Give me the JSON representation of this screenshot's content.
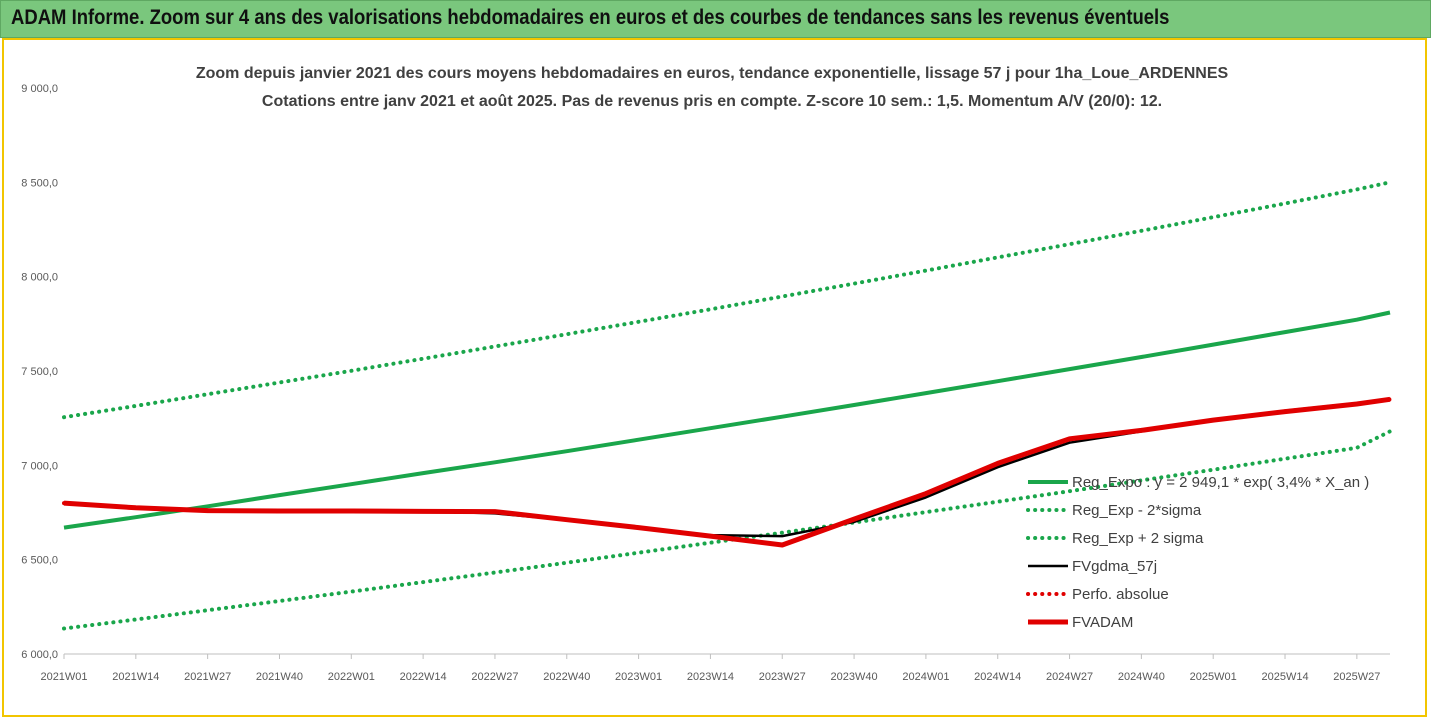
{
  "banner": {
    "title": "ADAM Informe. Zoom sur 4 ans des valorisations hebdomadaires en euros et des courbes de tendances sans les revenus éventuels"
  },
  "chart_data": {
    "type": "line",
    "title": "Zoom depuis janvier 2021 des cours moyens hebdomadaires en euros, tendance exponentielle, lissage 57 j pour 1ha_Loue_ARDENNES",
    "subtitle": "Cotations entre janv 2021 et août 2025. Pas de revenus pris en compte. Z-score 10 sem.: 1,5. Momentum A/V (20/0): 12.",
    "xlabel": "",
    "ylabel": "",
    "ylim": [
      6000,
      9000
    ],
    "yticks": [
      "6 000,0",
      "6 500,0",
      "7 000,0",
      "7 500,0",
      "8 000,0",
      "8 500,0",
      "9 000,0"
    ],
    "xticks": [
      "2021W01",
      "2021W14",
      "2021W27",
      "2021W40",
      "2022W01",
      "2022W14",
      "2022W27",
      "2022W40",
      "2023W01",
      "2023W14",
      "2023W27",
      "2023W40",
      "2024W01",
      "2024W14",
      "2024W27",
      "2024W40",
      "2025W01",
      "2025W14",
      "2025W27"
    ],
    "grid": false,
    "legend_position": "right",
    "x_week_index": [
      0,
      13,
      26,
      39,
      52,
      65,
      78,
      91,
      104,
      117,
      130,
      143,
      156,
      169,
      182,
      195,
      208,
      221,
      234,
      240
    ],
    "series": [
      {
        "name": "Reg_Expo : y = 2 949,1 * exp( 3,4% *  X_an )",
        "color": "#1aa64b",
        "style": "solid",
        "values": [
          6670,
          6725,
          6783,
          6842,
          6900,
          6959,
          7016,
          7075,
          7136,
          7197,
          7258,
          7320,
          7383,
          7446,
          7510,
          7574,
          7640,
          7706,
          7772,
          7810
        ]
      },
      {
        "name": "Reg_Exp - 2*sigma",
        "color": "#1aa64b",
        "style": "dotted",
        "values": [
          6135,
          6183,
          6232,
          6281,
          6331,
          6381,
          6432,
          6484,
          6537,
          6590,
          6643,
          6697,
          6752,
          6807,
          6863,
          6920,
          6977,
          7035,
          7093,
          7180
        ]
      },
      {
        "name": "Reg_Exp + 2 sigma",
        "color": "#1aa64b",
        "style": "dotted",
        "values": [
          7255,
          7315,
          7377,
          7439,
          7501,
          7565,
          7630,
          7695,
          7761,
          7827,
          7895,
          7963,
          8032,
          8102,
          8172,
          8243,
          8315,
          8388,
          8462,
          8500
        ]
      },
      {
        "name": "FVgdma_57j",
        "color": "#000000",
        "style": "solid",
        "values": [
          6795,
          6775,
          6760,
          6757,
          6757,
          6757,
          6745,
          6710,
          6668,
          6630,
          6625,
          6700,
          6830,
          6990,
          7120,
          7180,
          7240,
          7290,
          7330,
          7345
        ]
      },
      {
        "name": "Perfo. absolue",
        "color": "#e00000",
        "style": "dotted",
        "values": [
          6800,
          6775,
          6760,
          6758,
          6758,
          6756,
          6755,
          6712,
          6670,
          6625,
          6578,
          6715,
          6850,
          7010,
          7140,
          7185,
          7240,
          7285,
          7325,
          7350
        ]
      },
      {
        "name": "FVADAM",
        "color": "#e00000",
        "style": "thick",
        "values": [
          6800,
          6775,
          6760,
          6758,
          6758,
          6756,
          6755,
          6712,
          6670,
          6625,
          6578,
          6715,
          6850,
          7010,
          7140,
          7185,
          7240,
          7285,
          7325,
          7350
        ]
      }
    ]
  }
}
